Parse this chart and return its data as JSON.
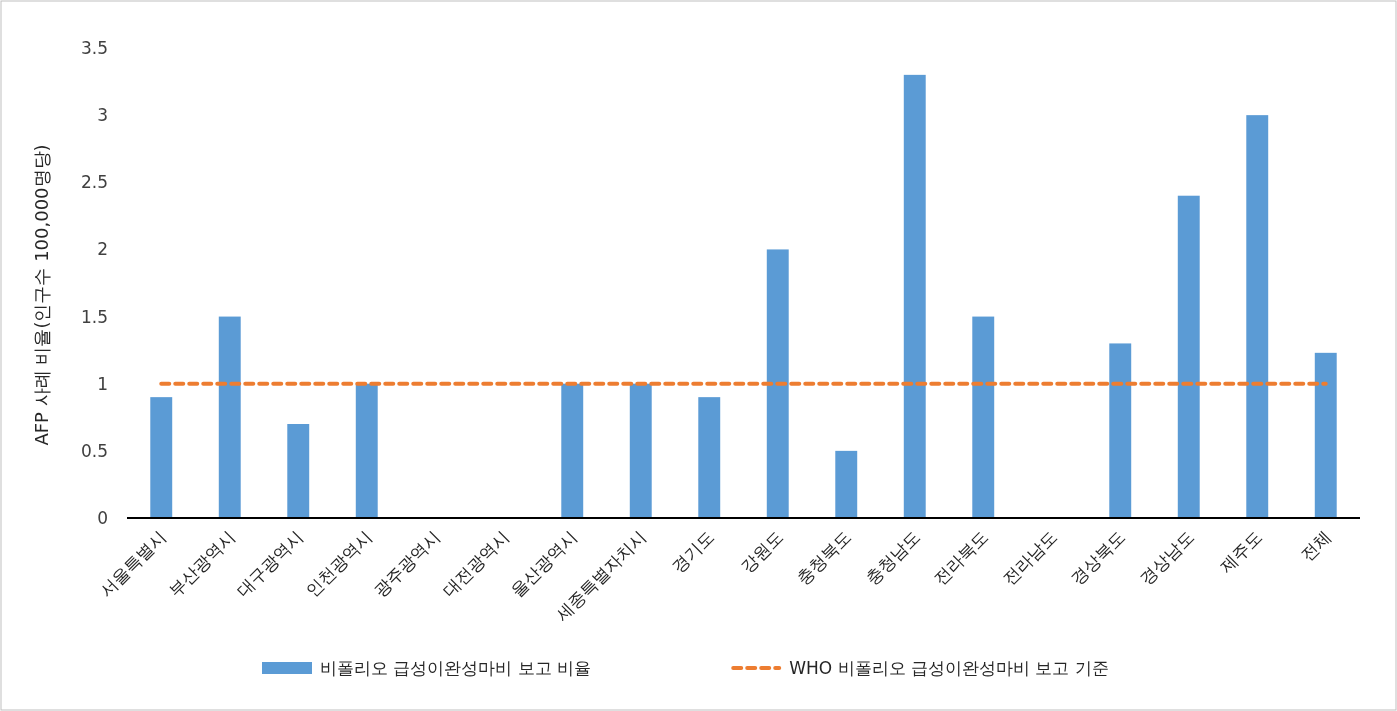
{
  "chart_data": {
    "type": "bar",
    "ylabel": "AFP 사례 비율(인구수 100,000명당)",
    "categories": [
      "서울특별시",
      "부산광역시",
      "대구광역시",
      "인천광역시",
      "광주광역시",
      "대전광역시",
      "울산광역시",
      "세종특별자치시",
      "경기도",
      "강원도",
      "충청북도",
      "충청남도",
      "전라북도",
      "전라남도",
      "경상북도",
      "경상남도",
      "제주도",
      "전체"
    ],
    "series": [
      {
        "name": "비폴리오 급성이완성마비 보고 비율",
        "color": "#5b9bd5",
        "values": [
          0.9,
          1.5,
          0.7,
          1.0,
          0,
          0,
          1.0,
          1.0,
          0.9,
          2.0,
          0.5,
          3.3,
          1.5,
          0,
          1.3,
          2.4,
          3.0,
          1.23
        ]
      },
      {
        "name": "WHO 비폴리오 급성이완성마비 보고 기준",
        "type": "line",
        "color": "#ed7d31",
        "line_style": "dashed",
        "values": [
          1,
          1,
          1,
          1,
          1,
          1,
          1,
          1,
          1,
          1,
          1,
          1,
          1,
          1,
          1,
          1,
          1,
          1
        ]
      }
    ],
    "ylim": [
      0,
      3.5
    ],
    "yticks": [
      0,
      0.5,
      1,
      1.5,
      2,
      2.5,
      3,
      3.5
    ],
    "legend": "bottom"
  }
}
